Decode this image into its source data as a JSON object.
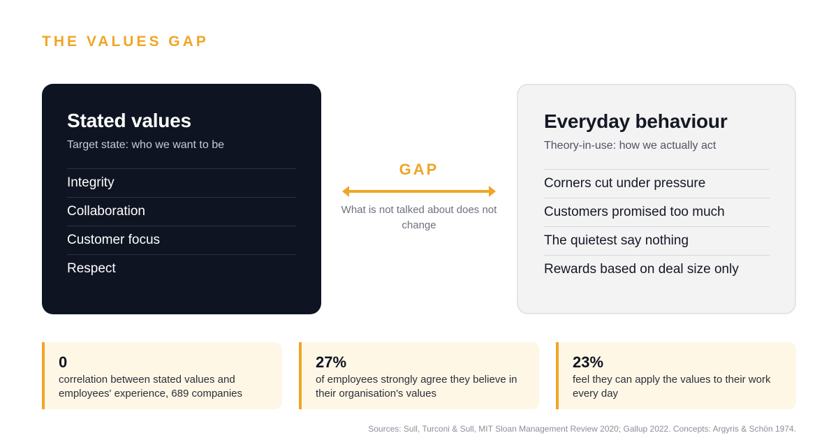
{
  "kicker": "THE VALUES GAP",
  "stated": {
    "title": "Stated values",
    "subtitle": "Target state: who we want to be",
    "items": [
      "Integrity",
      "Collaboration",
      "Customer focus",
      "Respect"
    ]
  },
  "behaviour": {
    "title": "Everyday behaviour",
    "subtitle": "Theory-in-use: how we actually act",
    "items": [
      "Corners cut under pressure",
      "Customers promised too much",
      "The quietest say nothing",
      "Rewards based on deal size only"
    ]
  },
  "gap": {
    "label": "GAP",
    "note": "What is not talked about does not change",
    "accent": "#f0a526"
  },
  "stats": [
    {
      "value": "0",
      "description": "correlation between stated values and employees' experience, 689 companies"
    },
    {
      "value": "27%",
      "description": "of employees strongly agree they believe in their organisation's values"
    },
    {
      "value": "23%",
      "description": "feel they can apply the values to their work every day"
    }
  ],
  "sources": "Sources: Sull, Turconi & Sull, MIT Sloan Management Review 2020; Gallup 2022. Concepts: Argyris & Schön 1974."
}
